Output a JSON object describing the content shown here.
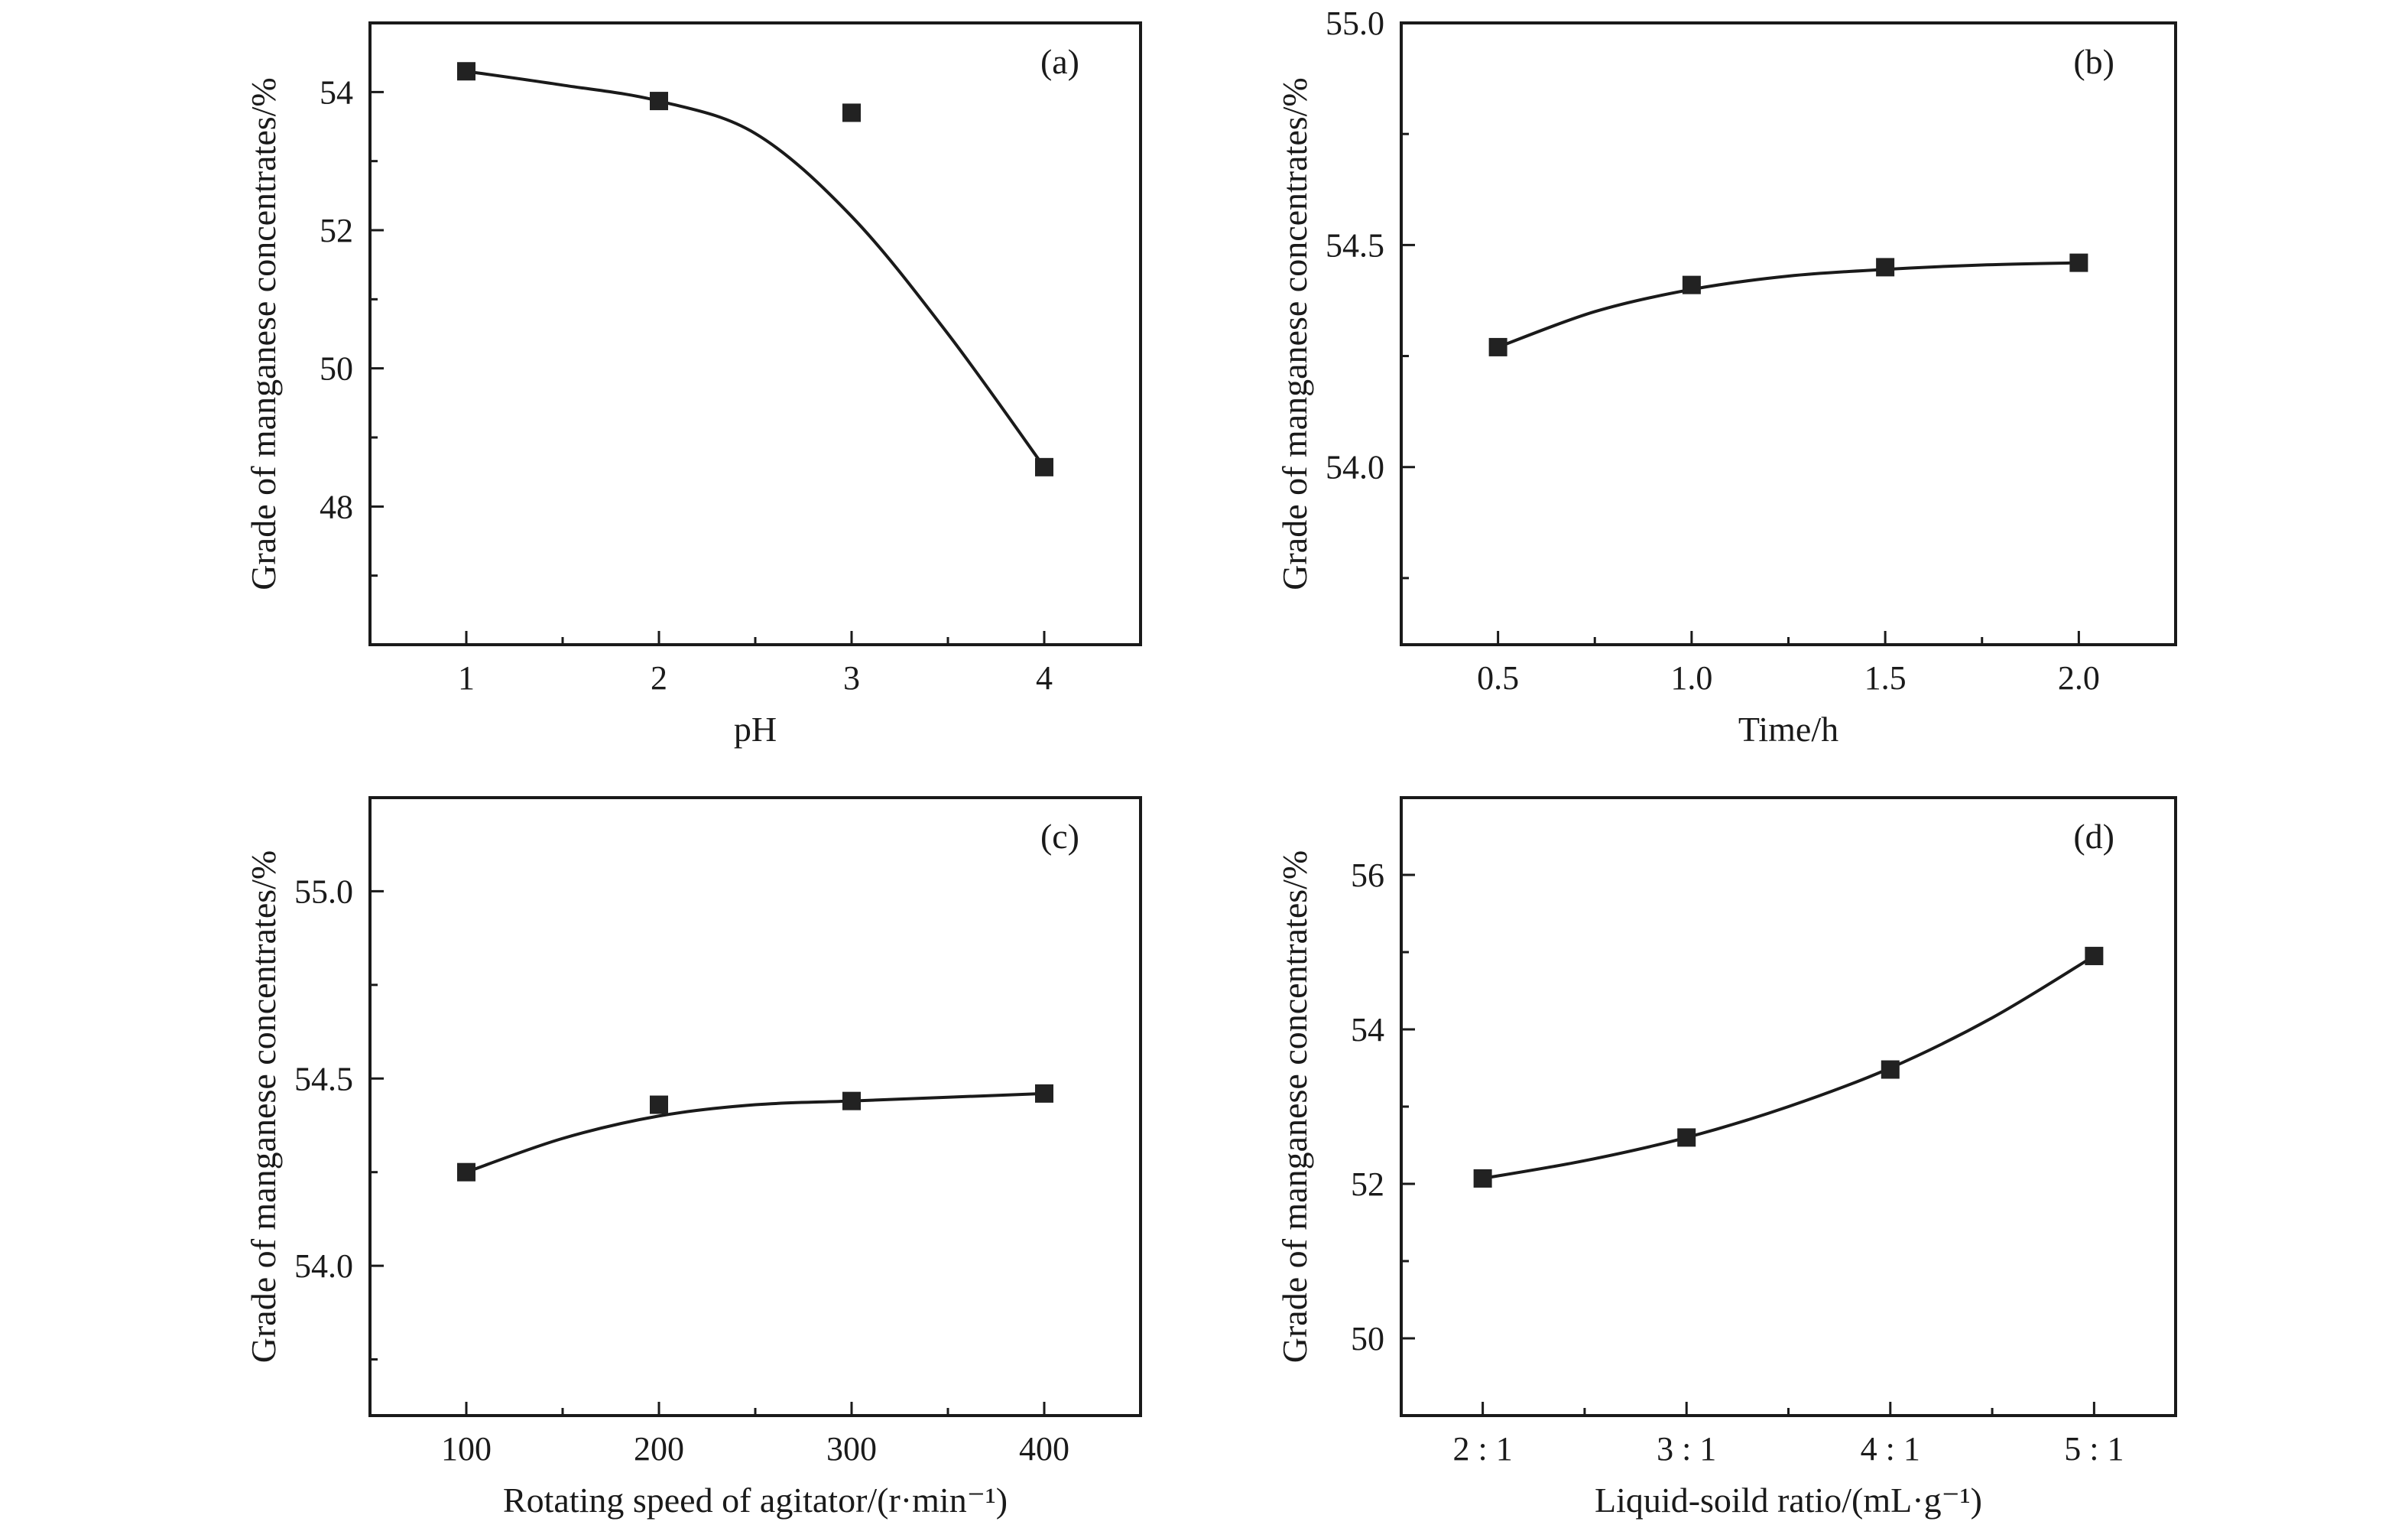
{
  "chart_data": [
    {
      "type": "scatter",
      "panel_label": "(a)",
      "title": "",
      "xlabel": "pH",
      "ylabel": "Grade of manganese concentrates/%",
      "xlim": [
        0.5,
        4.5
      ],
      "ylim": [
        46,
        55
      ],
      "xticks": [
        1,
        2,
        3,
        4
      ],
      "xtick_labels": [
        "1",
        "2",
        "3",
        "4"
      ],
      "yticks": [
        48,
        50,
        52,
        54
      ],
      "ytick_labels": [
        "48",
        "50",
        "52",
        "54"
      ],
      "y_minor_ticks": [
        47,
        49,
        51,
        53
      ],
      "x_minor_ticks": [
        1.5,
        2.5,
        3.5
      ],
      "grid": false,
      "series": [
        {
          "x": [
            1,
            2,
            3,
            4
          ],
          "y": [
            54.3,
            53.87,
            53.7,
            48.57
          ],
          "fit": {
            "x": [
              1,
              1.5,
              2,
              2.5,
              3,
              3.5,
              4
            ],
            "y": [
              54.3,
              54.1,
              53.87,
              53.4,
              52.2,
              50.5,
              48.57
            ]
          }
        }
      ]
    },
    {
      "type": "scatter",
      "panel_label": "(b)",
      "title": "",
      "xlabel": "Time/h",
      "ylabel": "Grade of manganese concentrates/%",
      "xlim": [
        0.25,
        2.25
      ],
      "ylim": [
        53.6,
        55.0
      ],
      "xticks": [
        0.5,
        1.0,
        1.5,
        2.0
      ],
      "xtick_labels": [
        "0.5",
        "1.0",
        "1.5",
        "2.0"
      ],
      "yticks": [
        54.0,
        54.5,
        55.0
      ],
      "ytick_labels": [
        "54.0",
        "54.5",
        "55.0"
      ],
      "y_minor_ticks": [
        53.75,
        54.25,
        54.75
      ],
      "x_minor_ticks": [
        0.75,
        1.25,
        1.75
      ],
      "grid": false,
      "series": [
        {
          "x": [
            0.5,
            1.0,
            1.5,
            2.0
          ],
          "y": [
            54.27,
            54.41,
            54.45,
            54.46
          ],
          "fit": {
            "x": [
              0.5,
              0.75,
              1.0,
              1.25,
              1.5,
              1.75,
              2.0
            ],
            "y": [
              54.27,
              54.35,
              54.4,
              54.43,
              54.445,
              54.455,
              54.46
            ]
          }
        }
      ]
    },
    {
      "type": "scatter",
      "panel_label": "(c)",
      "title": "",
      "xlabel": "Rotating speed of agitator/(r·min⁻¹)",
      "ylabel": "Grade of manganese concentrates/%",
      "xlim": [
        50,
        450
      ],
      "ylim": [
        53.6,
        55.25
      ],
      "xticks": [
        100,
        200,
        300,
        400
      ],
      "xtick_labels": [
        "100",
        "200",
        "300",
        "400"
      ],
      "yticks": [
        54.0,
        54.5,
        55.0
      ],
      "ytick_labels": [
        "54.0",
        "54.5",
        "55.0"
      ],
      "y_minor_ticks": [
        53.75,
        54.25,
        54.75
      ],
      "x_minor_ticks": [
        150,
        250,
        350
      ],
      "grid": false,
      "series": [
        {
          "x": [
            100,
            200,
            300,
            400
          ],
          "y": [
            54.25,
            54.43,
            54.44,
            54.46
          ],
          "fit": {
            "x": [
              100,
              150,
              200,
              250,
              300,
              350,
              400
            ],
            "y": [
              54.25,
              54.34,
              54.4,
              54.43,
              54.44,
              54.45,
              54.46
            ]
          }
        }
      ]
    },
    {
      "type": "scatter",
      "panel_label": "(d)",
      "title": "",
      "xlabel": "Liquid-soild ratio/(mL·g⁻¹)",
      "ylabel": "Grade of manganese concentrates/%",
      "xlim": [
        1.6,
        5.4
      ],
      "ylim": [
        49,
        57
      ],
      "xticks": [
        2,
        3,
        4,
        5
      ],
      "xtick_labels": [
        "2 : 1",
        "3 : 1",
        "4 : 1",
        "5 : 1"
      ],
      "yticks": [
        50,
        52,
        54,
        56
      ],
      "ytick_labels": [
        "50",
        "52",
        "54",
        "56"
      ],
      "y_minor_ticks": [
        51,
        53,
        55
      ],
      "x_minor_ticks": [
        2.5,
        3.5,
        4.5
      ],
      "grid": false,
      "series": [
        {
          "x": [
            2,
            3,
            4,
            5
          ],
          "y": [
            52.07,
            52.6,
            53.48,
            54.95
          ],
          "fit": {
            "x": [
              2,
              2.5,
              3,
              3.5,
              4,
              4.5,
              5
            ],
            "y": [
              52.07,
              52.3,
              52.6,
              53.0,
              53.5,
              54.15,
              54.95
            ]
          }
        }
      ]
    }
  ]
}
